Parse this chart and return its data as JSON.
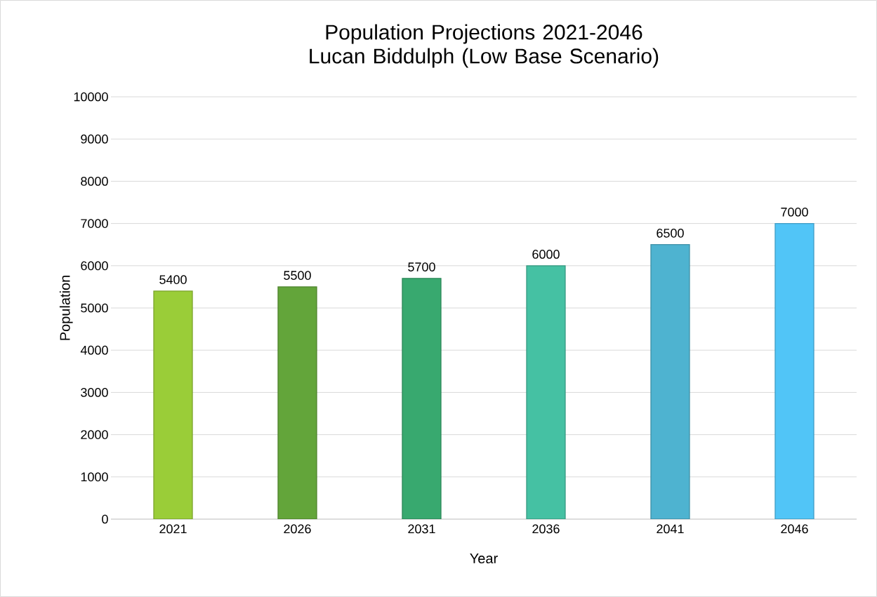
{
  "chart_data": {
    "type": "bar",
    "title": "Population Projections 2021-2046 Lucan Biddulph (Low Base Scenario)",
    "xlabel": "Year",
    "ylabel": "Population",
    "categories": [
      "2021",
      "2026",
      "2031",
      "2036",
      "2041",
      "2046"
    ],
    "values": [
      5400,
      5500,
      5700,
      6000,
      6500,
      7000
    ],
    "colors": [
      "#9acd38",
      "#63a53a",
      "#38a96f",
      "#45c1a3",
      "#4eb3d0",
      "#51c5f7"
    ],
    "ylim": [
      0,
      10000
    ],
    "yticks": [
      0,
      1000,
      2000,
      3000,
      4000,
      5000,
      6000,
      7000,
      8000,
      9000,
      10000
    ],
    "grid": "y",
    "data_labels": true
  }
}
